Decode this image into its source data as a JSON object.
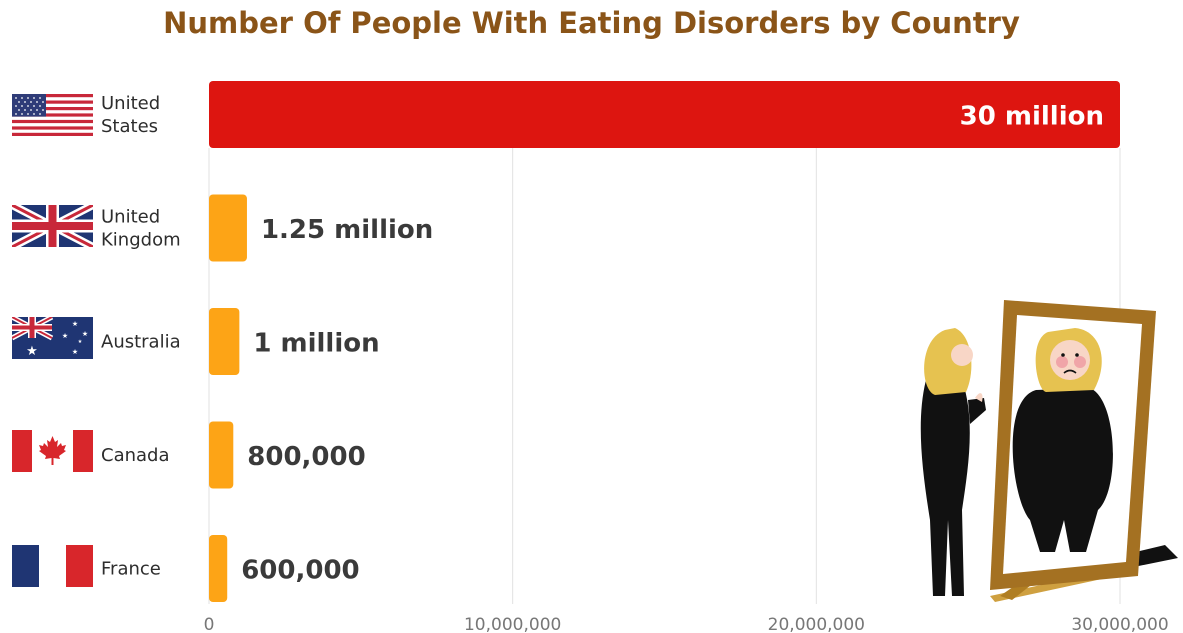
{
  "chart_data": {
    "type": "bar",
    "orientation": "horizontal",
    "title": "Number Of People With Eating Disorders by Country",
    "categories": [
      "United States",
      "United Kingdom",
      "Australia",
      "Canada",
      "France"
    ],
    "values": [
      30000000,
      1250000,
      1000000,
      800000,
      600000
    ],
    "value_labels": [
      "30 million",
      "1.25 million",
      "1 million",
      "800,000",
      "600,000"
    ],
    "x_ticks": [
      0,
      10000000,
      20000000,
      30000000
    ],
    "x_tick_labels": [
      "0",
      "10,000,000",
      "20,000,000",
      "30,000,000"
    ],
    "xlim": [
      0,
      30000000
    ],
    "xlabel": "",
    "ylabel": "",
    "grid": "vertical",
    "colors": {
      "highlight": "#dd1510",
      "default": "#fda416",
      "title": "#8a5418"
    },
    "flag_icons": [
      "us-flag-icon",
      "uk-flag-icon",
      "australia-flag-icon",
      "canada-flag-icon",
      "france-flag-icon"
    ]
  }
}
